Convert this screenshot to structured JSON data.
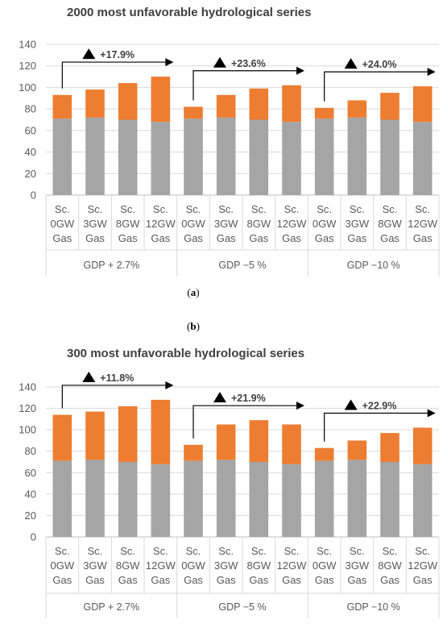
{
  "labels": {
    "a": "a",
    "b": "b"
  },
  "chart_data": [
    {
      "type": "bar",
      "stacked": true,
      "title": "2000 most unfavorable hydrological series",
      "ylim": [
        0,
        140
      ],
      "yticks": [
        0,
        20,
        40,
        60,
        80,
        100,
        120,
        140
      ],
      "grid": true,
      "groups": [
        {
          "label": "GDP + 2.7%",
          "categories": [
            [
              "Sc.",
              "0GW",
              "Gas"
            ],
            [
              "Sc.",
              "3GW",
              "Gas"
            ],
            [
              "Sc.",
              "8GW",
              "Gas"
            ],
            [
              "Sc.",
              "12GW",
              "Gas"
            ]
          ]
        },
        {
          "label": "GDP −5 %",
          "categories": [
            [
              "Sc.",
              "0GW",
              "Gas"
            ],
            [
              "Sc.",
              "3GW",
              "Gas"
            ],
            [
              "Sc.",
              "8GW",
              "Gas"
            ],
            [
              "Sc.",
              "12GW",
              "Gas"
            ]
          ]
        },
        {
          "label": "GDP −10 %",
          "categories": [
            [
              "Sc.",
              "0GW",
              "Gas"
            ],
            [
              "Sc.",
              "3GW",
              "Gas"
            ],
            [
              "Sc.",
              "8GW",
              "Gas"
            ],
            [
              "Sc.",
              "12GW",
              "Gas"
            ]
          ]
        }
      ],
      "series": [
        {
          "color": "#a5a5a5",
          "values": [
            71,
            72,
            70,
            68,
            71,
            72,
            70,
            68,
            71,
            72,
            70,
            68
          ]
        },
        {
          "color": "#ed7d31",
          "values": [
            22,
            26,
            34,
            42,
            11,
            21,
            29,
            34,
            10,
            16,
            25,
            33
          ]
        }
      ],
      "annotations": [
        {
          "group": 0,
          "text": "+17.9%"
        },
        {
          "group": 1,
          "text": "+23.6%"
        },
        {
          "group": 2,
          "text": "+24.0%"
        }
      ]
    },
    {
      "type": "bar",
      "stacked": true,
      "title": "300 most unfavorable hydrological series",
      "ylim": [
        0,
        140
      ],
      "yticks": [
        0,
        20,
        40,
        60,
        80,
        100,
        120,
        140
      ],
      "grid": true,
      "groups": [
        {
          "label": "GDP + 2.7%",
          "categories": [
            [
              "Sc.",
              "0GW",
              "Gas"
            ],
            [
              "Sc.",
              "3GW",
              "Gas"
            ],
            [
              "Sc.",
              "8GW",
              "Gas"
            ],
            [
              "Sc.",
              "12GW",
              "Gas"
            ]
          ]
        },
        {
          "label": "GDP −5 %",
          "categories": [
            [
              "Sc.",
              "0GW",
              "Gas"
            ],
            [
              "Sc.",
              "3GW",
              "Gas"
            ],
            [
              "Sc.",
              "8GW",
              "Gas"
            ],
            [
              "Sc.",
              "12GW",
              "Gas"
            ]
          ]
        },
        {
          "label": "GDP −10 %",
          "categories": [
            [
              "Sc.",
              "0GW",
              "Gas"
            ],
            [
              "Sc.",
              "3GW",
              "Gas"
            ],
            [
              "Sc.",
              "8GW",
              "Gas"
            ],
            [
              "Sc.",
              "12GW",
              "Gas"
            ]
          ]
        }
      ],
      "series": [
        {
          "color": "#a5a5a5",
          "values": [
            71,
            72,
            70,
            68,
            71,
            72,
            70,
            68,
            71,
            72,
            70,
            68
          ]
        },
        {
          "color": "#ed7d31",
          "values": [
            43,
            45,
            52,
            60,
            15,
            33,
            39,
            37,
            12,
            18,
            27,
            34
          ]
        }
      ],
      "annotations": [
        {
          "group": 0,
          "text": "+11.8%"
        },
        {
          "group": 1,
          "text": "+21.9%"
        },
        {
          "group": 2,
          "text": "+22.9%"
        }
      ]
    }
  ]
}
